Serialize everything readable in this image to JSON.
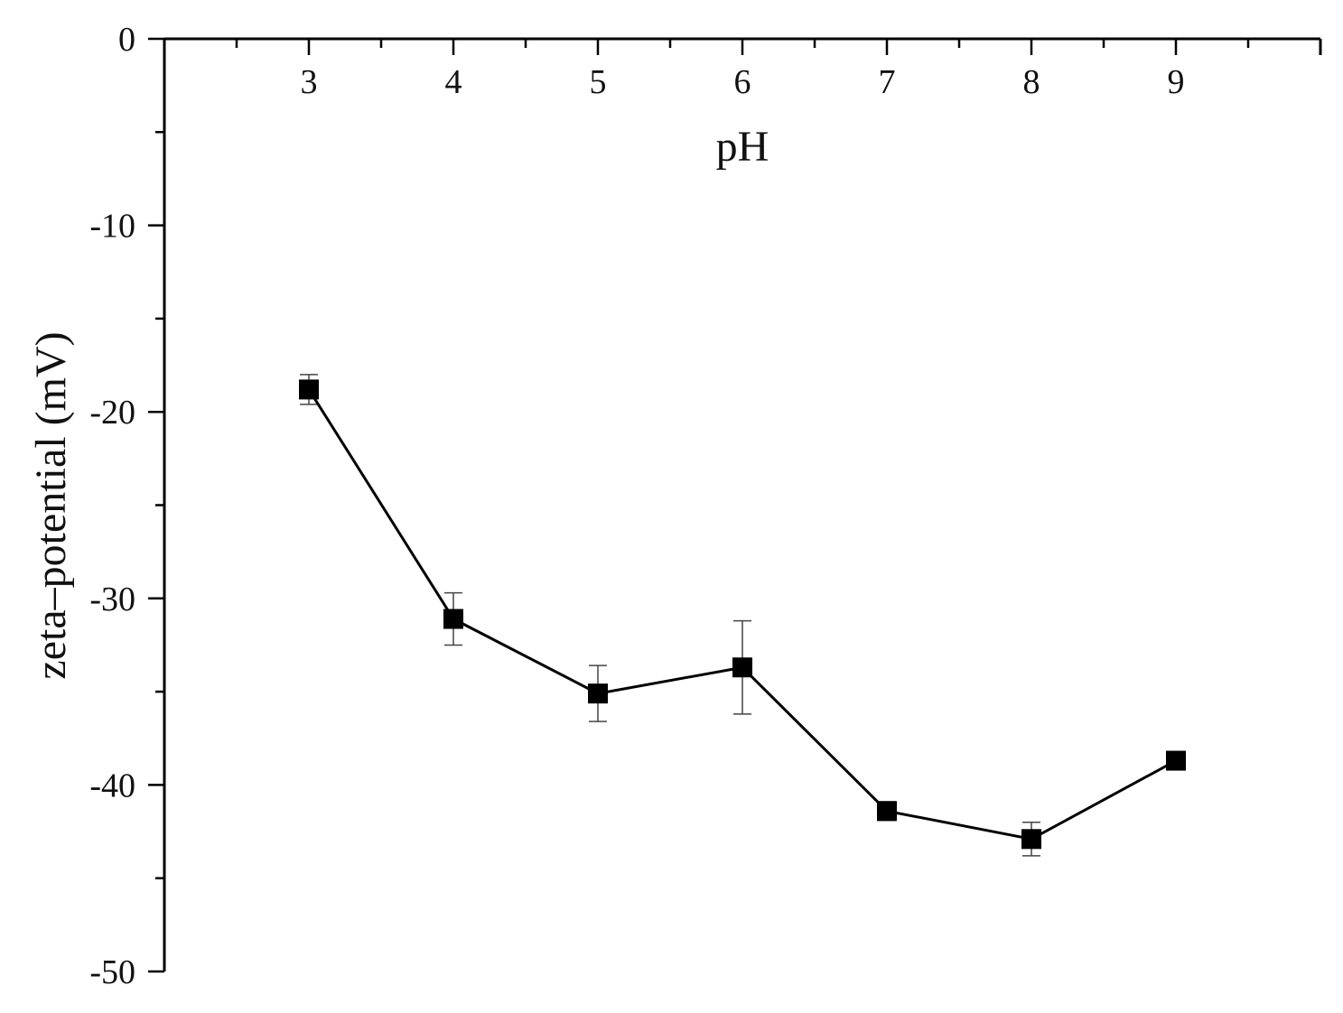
{
  "chart_data": {
    "type": "line",
    "title": "",
    "xlabel": "pH",
    "ylabel": "zeta–potential (mV)",
    "xlim": [
      2,
      10
    ],
    "ylim": [
      -50,
      0
    ],
    "x_ticks": [
      3,
      4,
      5,
      6,
      7,
      8,
      9
    ],
    "y_ticks": [
      0,
      -10,
      -20,
      -30,
      -40,
      -50
    ],
    "x_tick_labels": [
      "3",
      "4",
      "5",
      "6",
      "7",
      "8",
      "9"
    ],
    "y_tick_labels": [
      "0",
      "-10",
      "-20",
      "-30",
      "-40",
      "-50"
    ],
    "x_axis_position": "top",
    "grid": false,
    "legend": "none",
    "series": [
      {
        "marker": "square",
        "color": "#000000",
        "x": [
          3,
          4,
          5,
          6,
          7,
          8,
          9
        ],
        "y": [
          -18.8,
          -31.1,
          -35.1,
          -33.7,
          -41.4,
          -42.9,
          -38.7
        ],
        "error": [
          0.8,
          1.4,
          1.5,
          2.5,
          0.5,
          0.9,
          0.3
        ]
      }
    ]
  }
}
